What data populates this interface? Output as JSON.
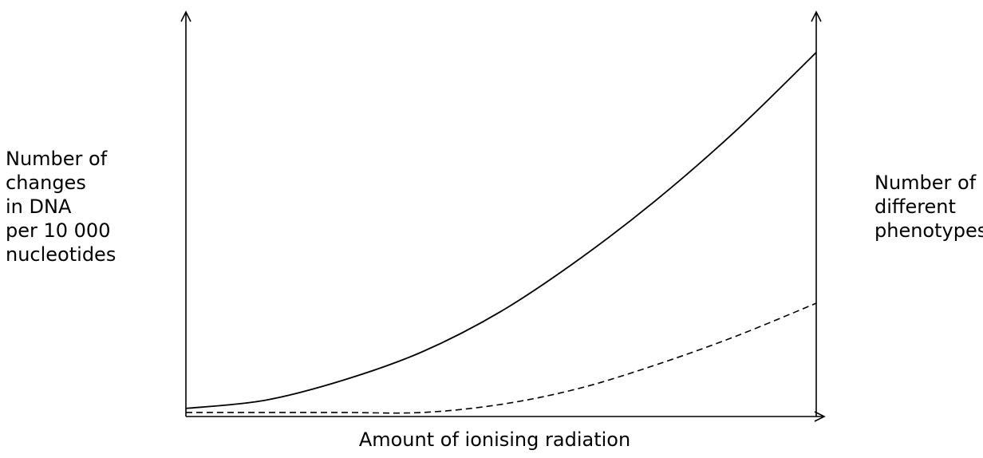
{
  "chart_data": {
    "type": "line",
    "title": "",
    "xlabel": "Amount of ionising radiation",
    "ylabel_left": [
      "Number of",
      "changes",
      "in DNA",
      "per 10 000",
      "nucleotides"
    ],
    "ylabel_right": [
      "Number of",
      "different",
      "phenotypes"
    ],
    "xlim": [
      0,
      1
    ],
    "ylim": [
      0,
      1
    ],
    "grid": false,
    "legend": "none",
    "axis_ticks": false,
    "series": [
      {
        "style": "solid",
        "axis": "left",
        "x": [
          0,
          0.125,
          0.25,
          0.375,
          0.5,
          0.625,
          0.75,
          0.875,
          1
        ],
        "y": [
          0.02,
          0.04,
          0.09,
          0.16,
          0.26,
          0.39,
          0.54,
          0.71,
          0.9
        ]
      },
      {
        "style": "dashed",
        "axis": "right",
        "x": [
          0,
          0.125,
          0.25,
          0.375,
          0.5,
          0.625,
          0.75,
          0.875,
          1
        ],
        "y": [
          0.01,
          0.01,
          0.01,
          0.01,
          0.03,
          0.07,
          0.13,
          0.2,
          0.28
        ]
      }
    ],
    "colors": {
      "axis": "#000000",
      "solid_series": "#000000",
      "dashed_series": "#000000"
    }
  }
}
